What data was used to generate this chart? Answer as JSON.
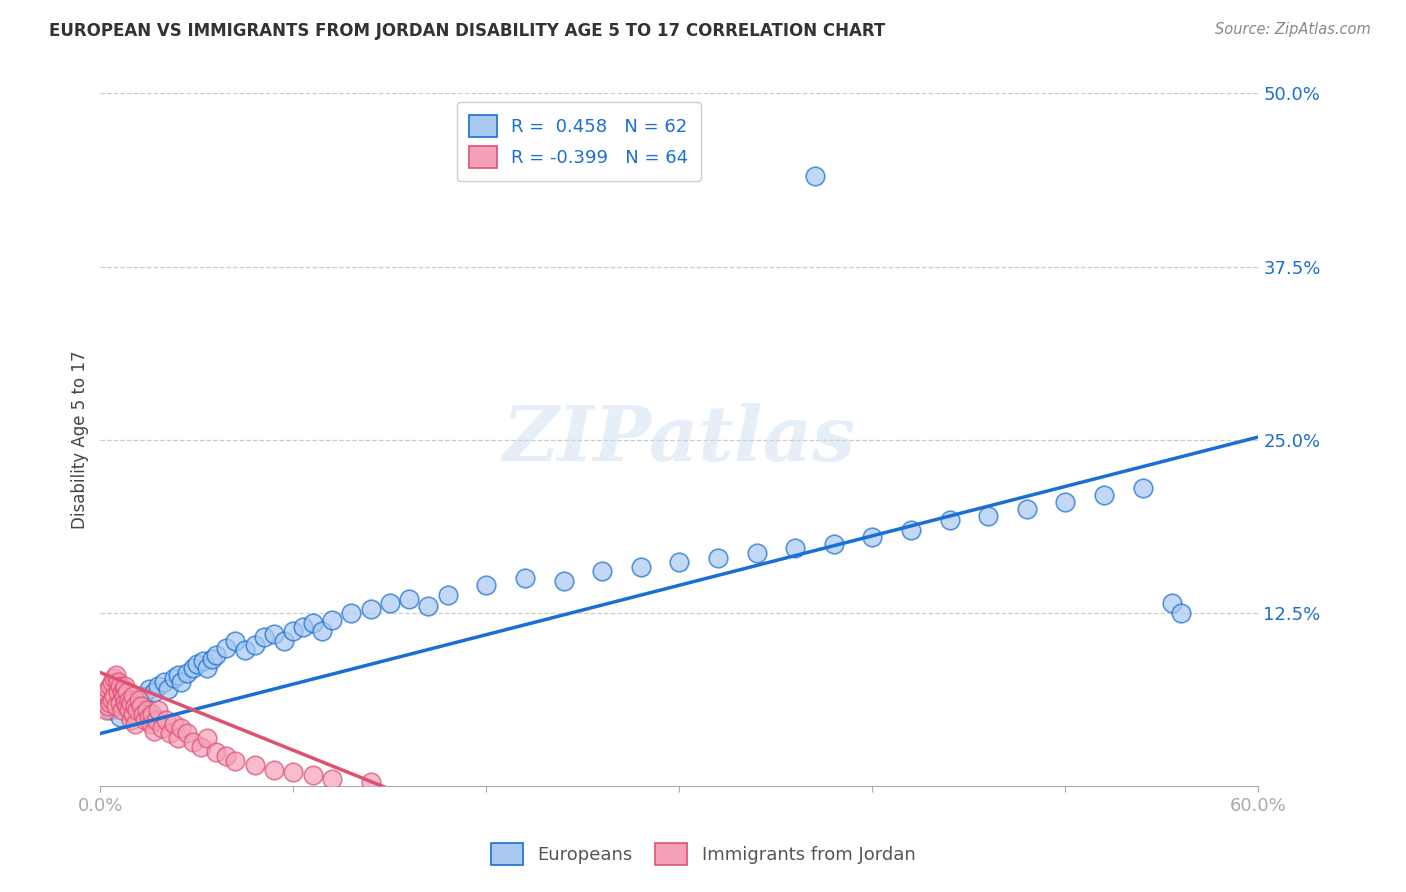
{
  "title": "EUROPEAN VS IMMIGRANTS FROM JORDAN DISABILITY AGE 5 TO 17 CORRELATION CHART",
  "source": "Source: ZipAtlas.com",
  "ylabel": "Disability Age 5 to 17",
  "xlim": [
    0.0,
    0.6
  ],
  "ylim": [
    0.0,
    0.5
  ],
  "ytick_labels_right": [
    "50.0%",
    "37.5%",
    "25.0%",
    "12.5%",
    ""
  ],
  "ytick_vals_right": [
    0.5,
    0.375,
    0.25,
    0.125,
    0.0
  ],
  "legend_r_european": "R =  0.458",
  "legend_n_european": "N = 62",
  "legend_r_jordan": "R = -0.399",
  "legend_n_jordan": "N = 64",
  "european_color": "#a8c8f0",
  "jordan_color": "#f4a0b8",
  "trendline_european_color": "#1a6fd4",
  "trendline_jordan_color": "#e05070",
  "background_color": "#ffffff",
  "watermark": "ZIPatlas",
  "eu_trend_x0": 0.0,
  "eu_trend_y0": 0.038,
  "eu_trend_x1": 0.6,
  "eu_trend_y1": 0.252,
  "jo_trend_x0": 0.0,
  "jo_trend_y0": 0.082,
  "jo_trend_x1": 0.155,
  "jo_trend_y1": -0.005,
  "european_x": [
    0.005,
    0.008,
    0.01,
    0.012,
    0.015,
    0.018,
    0.02,
    0.022,
    0.025,
    0.028,
    0.03,
    0.033,
    0.035,
    0.038,
    0.04,
    0.042,
    0.045,
    0.048,
    0.05,
    0.053,
    0.055,
    0.058,
    0.06,
    0.065,
    0.07,
    0.075,
    0.08,
    0.085,
    0.09,
    0.095,
    0.1,
    0.105,
    0.11,
    0.115,
    0.12,
    0.13,
    0.14,
    0.15,
    0.16,
    0.17,
    0.18,
    0.2,
    0.22,
    0.24,
    0.26,
    0.28,
    0.3,
    0.32,
    0.34,
    0.36,
    0.38,
    0.4,
    0.42,
    0.44,
    0.46,
    0.48,
    0.5,
    0.52,
    0.54,
    0.555,
    0.37,
    0.56
  ],
  "european_y": [
    0.055,
    0.06,
    0.05,
    0.065,
    0.058,
    0.062,
    0.06,
    0.065,
    0.07,
    0.068,
    0.072,
    0.075,
    0.07,
    0.078,
    0.08,
    0.075,
    0.082,
    0.085,
    0.088,
    0.09,
    0.085,
    0.092,
    0.095,
    0.1,
    0.105,
    0.098,
    0.102,
    0.108,
    0.11,
    0.105,
    0.112,
    0.115,
    0.118,
    0.112,
    0.12,
    0.125,
    0.128,
    0.132,
    0.135,
    0.13,
    0.138,
    0.145,
    0.15,
    0.148,
    0.155,
    0.158,
    0.162,
    0.165,
    0.168,
    0.172,
    0.175,
    0.18,
    0.185,
    0.192,
    0.195,
    0.2,
    0.205,
    0.21,
    0.215,
    0.132,
    0.44,
    0.125
  ],
  "jordan_x": [
    0.002,
    0.003,
    0.003,
    0.004,
    0.004,
    0.005,
    0.005,
    0.006,
    0.006,
    0.007,
    0.007,
    0.008,
    0.008,
    0.009,
    0.009,
    0.01,
    0.01,
    0.011,
    0.011,
    0.012,
    0.012,
    0.013,
    0.013,
    0.014,
    0.014,
    0.015,
    0.015,
    0.016,
    0.016,
    0.017,
    0.017,
    0.018,
    0.018,
    0.019,
    0.02,
    0.021,
    0.022,
    0.023,
    0.024,
    0.025,
    0.026,
    0.027,
    0.028,
    0.029,
    0.03,
    0.032,
    0.034,
    0.036,
    0.038,
    0.04,
    0.042,
    0.045,
    0.048,
    0.052,
    0.055,
    0.06,
    0.065,
    0.07,
    0.08,
    0.09,
    0.1,
    0.11,
    0.12,
    0.14
  ],
  "jordan_y": [
    0.062,
    0.068,
    0.055,
    0.07,
    0.058,
    0.072,
    0.06,
    0.075,
    0.062,
    0.078,
    0.065,
    0.08,
    0.058,
    0.075,
    0.068,
    0.072,
    0.06,
    0.068,
    0.055,
    0.07,
    0.065,
    0.06,
    0.072,
    0.058,
    0.068,
    0.062,
    0.055,
    0.06,
    0.048,
    0.065,
    0.052,
    0.058,
    0.045,
    0.055,
    0.062,
    0.058,
    0.052,
    0.048,
    0.055,
    0.05,
    0.045,
    0.052,
    0.04,
    0.048,
    0.055,
    0.042,
    0.048,
    0.038,
    0.045,
    0.035,
    0.042,
    0.038,
    0.032,
    0.028,
    0.035,
    0.025,
    0.022,
    0.018,
    0.015,
    0.012,
    0.01,
    0.008,
    0.005,
    0.003
  ]
}
